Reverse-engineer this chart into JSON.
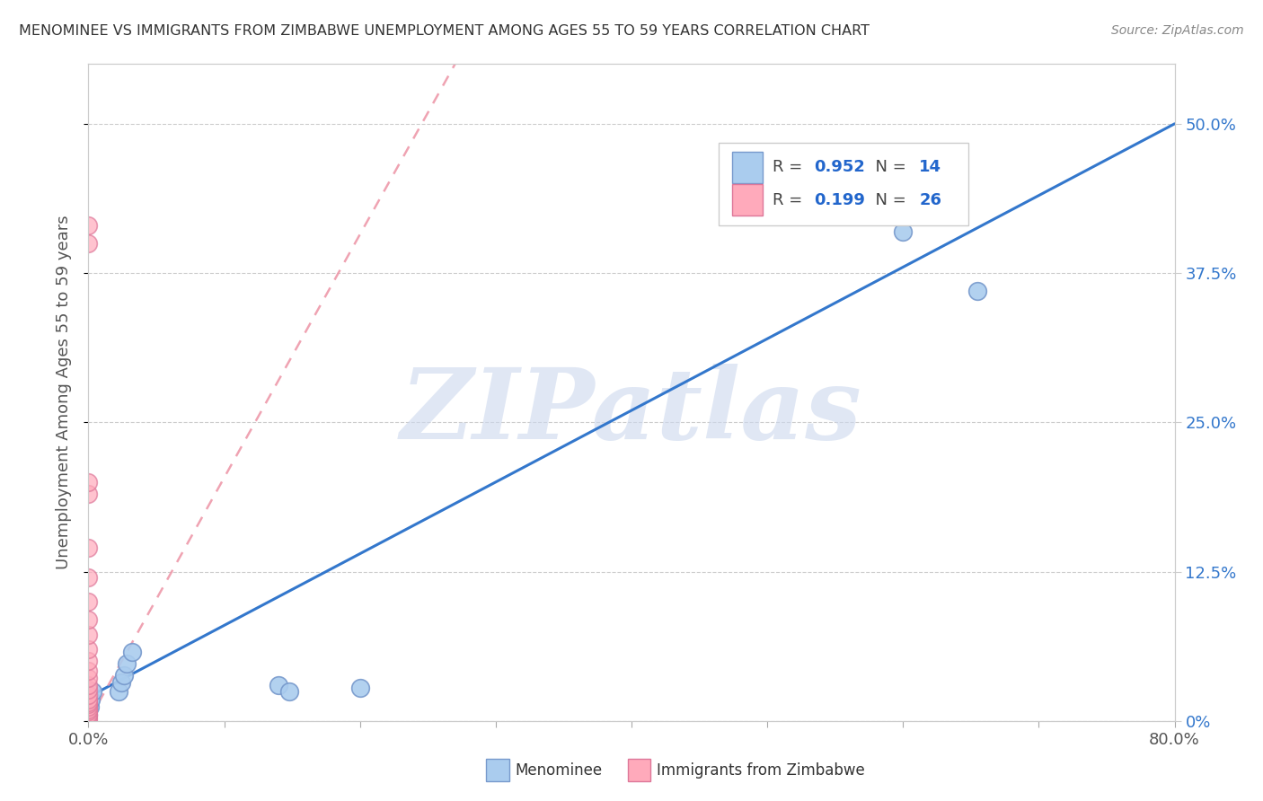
{
  "title": "MENOMINEE VS IMMIGRANTS FROM ZIMBABWE UNEMPLOYMENT AMONG AGES 55 TO 59 YEARS CORRELATION CHART",
  "source": "Source: ZipAtlas.com",
  "ylabel": "Unemployment Among Ages 55 to 59 years",
  "xlim": [
    0,
    0.8
  ],
  "ylim": [
    0,
    0.55
  ],
  "menominee_x": [
    0.0,
    0.001,
    0.002,
    0.003,
    0.022,
    0.024,
    0.026,
    0.028,
    0.032,
    0.14,
    0.148,
    0.2,
    0.6,
    0.655
  ],
  "menominee_y": [
    0.005,
    0.012,
    0.018,
    0.025,
    0.025,
    0.032,
    0.038,
    0.048,
    0.058,
    0.03,
    0.025,
    0.028,
    0.41,
    0.36
  ],
  "zimbabwe_x": [
    0.0,
    0.0,
    0.0,
    0.0,
    0.0,
    0.0,
    0.0,
    0.0,
    0.0,
    0.0,
    0.0,
    0.0,
    0.0,
    0.0,
    0.0,
    0.0,
    0.0,
    0.0,
    0.0,
    0.0,
    0.0,
    0.0,
    0.0,
    0.0,
    0.0,
    0.0
  ],
  "zimbabwe_y": [
    0.0,
    0.002,
    0.004,
    0.006,
    0.008,
    0.01,
    0.012,
    0.014,
    0.016,
    0.018,
    0.022,
    0.026,
    0.03,
    0.036,
    0.042,
    0.05,
    0.06,
    0.072,
    0.085,
    0.1,
    0.12,
    0.145,
    0.19,
    0.2,
    0.4,
    0.415
  ],
  "menominee_color": "#aaccee",
  "menominee_edge": "#7799cc",
  "zimbabwe_color": "#ffaabb",
  "zimbabwe_edge": "#dd7799",
  "trend_blue_color": "#3377cc",
  "trend_pink_color": "#ee99aa",
  "trend_blue_x0": 0.0,
  "trend_blue_y0": 0.02,
  "trend_blue_x1": 0.8,
  "trend_blue_y1": 0.5,
  "trend_pink_x0": 0.0,
  "trend_pink_y0": 0.0,
  "trend_pink_x1": 0.27,
  "trend_pink_y1": 0.55,
  "R_menominee": 0.952,
  "N_menominee": 14,
  "R_zimbabwe": 0.199,
  "N_zimbabwe": 26,
  "watermark": "ZIPatlas",
  "watermark_color": "#ccd8ee",
  "background_color": "#ffffff"
}
